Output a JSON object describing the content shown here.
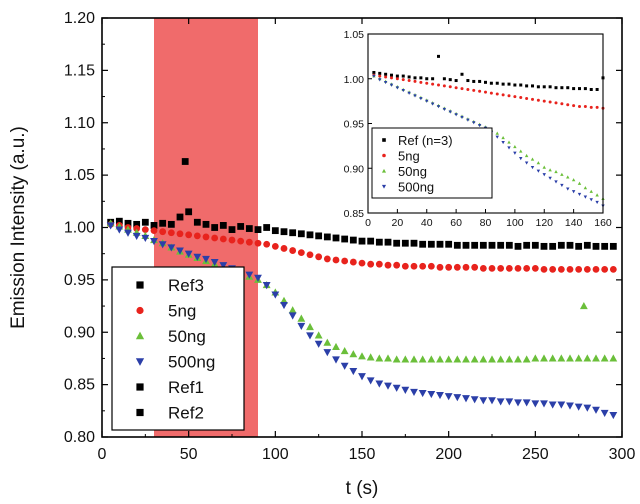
{
  "chart_data": [
    {
      "type": "scatter",
      "xlabel": "t (s)",
      "ylabel": "Emission Intensity (a.u.)",
      "xlim": [
        0,
        300
      ],
      "ylim": [
        0.8,
        1.2
      ],
      "xticks": [
        "0",
        "50",
        "100",
        "150",
        "200",
        "250",
        "300"
      ],
      "yticks": [
        "0.80",
        "0.85",
        "0.90",
        "0.95",
        "1.00",
        "1.05",
        "1.10",
        "1.15",
        "1.20"
      ],
      "highlight_band": {
        "x": [
          30,
          90
        ],
        "color": "#f06b6b"
      },
      "legend_position": "lower-left",
      "legend": [
        {
          "label": "Ref3",
          "marker": "square",
          "color": "#000000"
        },
        {
          "label": "5ng",
          "marker": "circle",
          "color": "#e8231d"
        },
        {
          "label": "50ng",
          "marker": "triangle-up",
          "color": "#6bbf3a"
        },
        {
          "label": "500ng",
          "marker": "triangle-down",
          "color": "#2b3fa8"
        },
        {
          "label": "Ref1",
          "marker": "square",
          "color": "#000000"
        },
        {
          "label": "Ref2",
          "marker": "square",
          "color": "#000000"
        }
      ],
      "series": [
        {
          "name": "Ref",
          "marker": "square",
          "color": "#000000",
          "x": [
            5,
            10,
            15,
            20,
            25,
            30,
            35,
            40,
            45,
            48,
            50,
            55,
            60,
            65,
            70,
            75,
            80,
            85,
            90,
            95,
            100,
            105,
            110,
            115,
            120,
            125,
            130,
            135,
            140,
            145,
            150,
            155,
            160,
            165,
            170,
            175,
            180,
            185,
            190,
            195,
            200,
            205,
            210,
            215,
            220,
            225,
            230,
            235,
            240,
            245,
            250,
            255,
            260,
            265,
            270,
            275,
            280,
            285,
            290,
            295
          ],
          "y": [
            1.005,
            1.006,
            1.004,
            1.003,
            1.005,
            1.002,
            1.004,
            1.003,
            1.01,
            1.063,
            1.015,
            1.005,
            1.003,
            1.0,
            1.002,
            0.998,
            1.001,
            0.999,
            0.998,
            1.0,
            0.997,
            0.996,
            0.995,
            0.994,
            0.993,
            0.992,
            0.991,
            0.99,
            0.989,
            0.988,
            0.987,
            0.987,
            0.986,
            0.986,
            0.985,
            0.985,
            0.985,
            0.984,
            0.984,
            0.984,
            0.984,
            0.983,
            0.983,
            0.983,
            0.983,
            0.983,
            0.983,
            0.983,
            0.982,
            0.983,
            0.983,
            0.982,
            0.982,
            0.983,
            0.983,
            0.982,
            0.983,
            0.982,
            0.982,
            0.982
          ]
        },
        {
          "name": "5ng",
          "marker": "circle",
          "color": "#e8231d",
          "x": [
            5,
            10,
            15,
            20,
            25,
            30,
            35,
            40,
            45,
            50,
            55,
            60,
            65,
            70,
            75,
            80,
            85,
            90,
            95,
            100,
            105,
            110,
            115,
            120,
            125,
            130,
            135,
            140,
            145,
            150,
            155,
            160,
            165,
            170,
            175,
            180,
            185,
            190,
            195,
            200,
            205,
            210,
            215,
            220,
            225,
            230,
            235,
            240,
            245,
            250,
            255,
            260,
            265,
            270,
            275,
            280,
            285,
            290,
            295
          ],
          "y": [
            1.003,
            1.002,
            1.0,
            0.999,
            0.998,
            0.997,
            0.996,
            0.995,
            0.994,
            0.993,
            0.992,
            0.991,
            0.99,
            0.989,
            0.988,
            0.987,
            0.986,
            0.985,
            0.984,
            0.982,
            0.98,
            0.978,
            0.976,
            0.974,
            0.972,
            0.97,
            0.969,
            0.968,
            0.967,
            0.966,
            0.965,
            0.965,
            0.964,
            0.964,
            0.963,
            0.963,
            0.963,
            0.963,
            0.962,
            0.962,
            0.962,
            0.962,
            0.962,
            0.961,
            0.961,
            0.961,
            0.961,
            0.961,
            0.961,
            0.961,
            0.96,
            0.96,
            0.96,
            0.96,
            0.96,
            0.96,
            0.96,
            0.96,
            0.96
          ]
        },
        {
          "name": "50ng",
          "marker": "triangle-up",
          "color": "#6bbf3a",
          "x": [
            5,
            10,
            15,
            20,
            25,
            30,
            35,
            40,
            45,
            50,
            55,
            60,
            65,
            70,
            75,
            80,
            85,
            90,
            95,
            100,
            105,
            110,
            115,
            120,
            125,
            130,
            135,
            140,
            145,
            150,
            155,
            160,
            165,
            170,
            175,
            180,
            185,
            190,
            195,
            200,
            205,
            210,
            215,
            220,
            225,
            230,
            235,
            240,
            245,
            250,
            255,
            260,
            265,
            270,
            275,
            278,
            280,
            285,
            290,
            295
          ],
          "y": [
            1.004,
            1.001,
            0.998,
            0.995,
            0.992,
            0.988,
            0.985,
            0.981,
            0.977,
            0.974,
            0.971,
            0.968,
            0.965,
            0.962,
            0.959,
            0.956,
            0.953,
            0.95,
            0.945,
            0.938,
            0.93,
            0.921,
            0.913,
            0.905,
            0.897,
            0.89,
            0.886,
            0.882,
            0.879,
            0.877,
            0.876,
            0.875,
            0.875,
            0.874,
            0.874,
            0.874,
            0.874,
            0.874,
            0.874,
            0.874,
            0.874,
            0.874,
            0.874,
            0.874,
            0.874,
            0.874,
            0.874,
            0.874,
            0.874,
            0.875,
            0.875,
            0.875,
            0.875,
            0.875,
            0.875,
            0.925,
            0.875,
            0.875,
            0.875,
            0.875
          ]
        },
        {
          "name": "500ng",
          "marker": "triangle-down",
          "color": "#2b3fa8",
          "x": [
            5,
            10,
            15,
            20,
            25,
            30,
            35,
            40,
            45,
            50,
            55,
            60,
            65,
            70,
            75,
            80,
            85,
            90,
            95,
            100,
            105,
            110,
            115,
            120,
            125,
            130,
            135,
            140,
            145,
            150,
            155,
            160,
            165,
            170,
            175,
            180,
            185,
            190,
            195,
            200,
            205,
            210,
            215,
            220,
            225,
            230,
            235,
            240,
            245,
            250,
            255,
            260,
            265,
            270,
            275,
            280,
            285,
            290,
            295
          ],
          "y": [
            1.002,
            0.998,
            0.995,
            0.992,
            0.99,
            0.987,
            0.984,
            0.981,
            0.978,
            0.975,
            0.972,
            0.97,
            0.967,
            0.964,
            0.961,
            0.958,
            0.955,
            0.952,
            0.945,
            0.936,
            0.926,
            0.916,
            0.906,
            0.897,
            0.889,
            0.881,
            0.874,
            0.868,
            0.863,
            0.858,
            0.854,
            0.851,
            0.849,
            0.847,
            0.845,
            0.843,
            0.842,
            0.841,
            0.84,
            0.839,
            0.838,
            0.837,
            0.836,
            0.835,
            0.835,
            0.834,
            0.834,
            0.833,
            0.833,
            0.832,
            0.832,
            0.831,
            0.831,
            0.83,
            0.829,
            0.828,
            0.826,
            0.823,
            0.821
          ]
        }
      ]
    },
    {
      "type": "scatter",
      "inset": true,
      "xlim": [
        0,
        160
      ],
      "ylim": [
        0.85,
        1.05
      ],
      "xticks": [
        "0",
        "20",
        "40",
        "60",
        "80",
        "100",
        "120",
        "140",
        "160"
      ],
      "yticks": [
        "0.85",
        "0.90",
        "0.95",
        "1.00",
        "1.05"
      ],
      "legend_position": "bottom-left",
      "legend": [
        {
          "label": "Ref (n=3)",
          "marker": "square",
          "color": "#000000"
        },
        {
          "label": "5ng",
          "marker": "circle",
          "color": "#e8231d"
        },
        {
          "label": "50ng",
          "marker": "triangle-up",
          "color": "#6bbf3a"
        },
        {
          "label": "500ng",
          "marker": "triangle-down",
          "color": "#2b3fa8"
        }
      ],
      "series": [
        {
          "name": "Ref (n=3)",
          "marker": "square",
          "color": "#000000",
          "x": [
            4,
            8,
            12,
            16,
            20,
            24,
            28,
            32,
            36,
            40,
            44,
            48,
            52,
            56,
            60,
            64,
            68,
            72,
            76,
            80,
            84,
            88,
            92,
            96,
            100,
            104,
            108,
            112,
            116,
            120,
            124,
            128,
            132,
            136,
            140,
            144,
            148,
            152,
            156,
            160
          ],
          "y": [
            1.007,
            1.006,
            1.005,
            1.004,
            1.003,
            1.003,
            1.002,
            1.001,
            1.001,
            1.0,
            1.0,
            1.025,
            1.0,
            0.999,
            0.998,
            1.005,
            0.998,
            0.997,
            0.997,
            0.996,
            0.995,
            0.995,
            0.994,
            0.994,
            0.993,
            0.993,
            0.992,
            0.992,
            0.991,
            0.991,
            0.991,
            0.99,
            0.99,
            0.99,
            0.989,
            0.989,
            0.989,
            0.988,
            0.988,
            1.001
          ]
        },
        {
          "name": "5ng",
          "marker": "circle",
          "color": "#e8231d",
          "x": [
            4,
            8,
            12,
            16,
            20,
            24,
            28,
            32,
            36,
            40,
            44,
            48,
            52,
            56,
            60,
            64,
            68,
            72,
            76,
            80,
            84,
            88,
            92,
            96,
            100,
            104,
            108,
            112,
            116,
            120,
            124,
            128,
            132,
            136,
            140,
            144,
            148,
            152,
            156,
            160
          ],
          "y": [
            1.004,
            1.003,
            1.002,
            1.001,
            1.0,
            0.999,
            0.998,
            0.997,
            0.996,
            0.995,
            0.994,
            0.993,
            0.992,
            0.991,
            0.99,
            0.989,
            0.988,
            0.987,
            0.986,
            0.985,
            0.984,
            0.983,
            0.982,
            0.981,
            0.98,
            0.979,
            0.978,
            0.977,
            0.976,
            0.975,
            0.974,
            0.973,
            0.972,
            0.971,
            0.97,
            0.969,
            0.969,
            0.968,
            0.968,
            0.967
          ]
        },
        {
          "name": "50ng",
          "marker": "triangle-up",
          "color": "#6bbf3a",
          "x": [
            4,
            8,
            12,
            16,
            20,
            24,
            28,
            32,
            36,
            40,
            44,
            48,
            52,
            56,
            60,
            64,
            68,
            72,
            76,
            80,
            84,
            88,
            92,
            96,
            100,
            104,
            108,
            112,
            116,
            120,
            124,
            128,
            132,
            136,
            140,
            144,
            148,
            152,
            156,
            160
          ],
          "y": [
            1.003,
            1.0,
            0.997,
            0.994,
            0.991,
            0.988,
            0.985,
            0.982,
            0.979,
            0.976,
            0.973,
            0.97,
            0.967,
            0.964,
            0.961,
            0.958,
            0.955,
            0.952,
            0.949,
            0.946,
            0.943,
            0.939,
            0.934,
            0.929,
            0.924,
            0.919,
            0.914,
            0.91,
            0.906,
            0.901,
            0.898,
            0.896,
            0.893,
            0.89,
            0.887,
            0.883,
            0.878,
            0.874,
            0.87,
            0.866
          ]
        },
        {
          "name": "500ng",
          "marker": "triangle-down",
          "color": "#2b3fa8",
          "x": [
            4,
            8,
            12,
            16,
            20,
            24,
            28,
            32,
            36,
            40,
            44,
            48,
            52,
            56,
            60,
            64,
            68,
            72,
            76,
            80,
            84,
            88,
            92,
            96,
            100,
            104,
            108,
            112,
            116,
            120,
            124,
            128,
            132,
            136,
            140,
            144,
            148,
            152,
            156,
            160
          ],
          "y": [
            1.003,
            0.999,
            0.996,
            0.993,
            0.99,
            0.987,
            0.984,
            0.981,
            0.978,
            0.975,
            0.972,
            0.969,
            0.966,
            0.963,
            0.96,
            0.957,
            0.954,
            0.951,
            0.948,
            0.945,
            0.94,
            0.935,
            0.929,
            0.923,
            0.917,
            0.911,
            0.906,
            0.901,
            0.897,
            0.893,
            0.889,
            0.885,
            0.881,
            0.877,
            0.874,
            0.871,
            0.868,
            0.865,
            0.862,
            0.858
          ]
        }
      ]
    }
  ]
}
